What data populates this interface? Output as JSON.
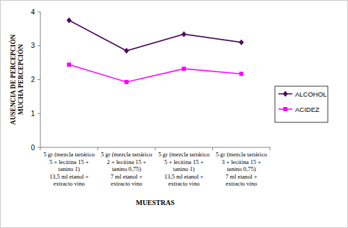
{
  "chart_data": {
    "type": "line",
    "x_label": "MUESTRAS",
    "y_label": "AUSENCIA DE PERCEPCIÓN\nMUCHA PERCEPCIÓN",
    "categories": [
      "5 gr (mezcla tartárico\n5 + lecitina 15 +\ntanino 1)\n13,5 ml etanol +\nextracto vino",
      "5 gr (mezcla tartárico\n2 + lecitina 15 +\ntanino 0,75)\n7 ml etanol +\nextracto vino",
      "5 gr (mezcla tartárico\n5 + lecitina 15 +\ntanino 1)\n13,5 ml etanol +\nextracto vino",
      "5 gr (mezcla tartárico\n3 + lecitina 15 +\ntanino 0,75)\n7 ml etanol +\nextracto vino"
    ],
    "series": [
      {
        "name": "ALCOHOL",
        "color": "#4b0a5c",
        "marker": "diamond",
        "values": [
          3.75,
          2.85,
          3.34,
          3.1
        ]
      },
      {
        "name": "ACIDEZ",
        "color": "#ff00ff",
        "marker": "square",
        "values": [
          2.44,
          1.93,
          2.32,
          2.17
        ]
      }
    ],
    "ylim": [
      0,
      4
    ],
    "yticks": [
      0,
      1,
      2,
      3,
      4
    ],
    "grid": false,
    "legend": "right"
  }
}
